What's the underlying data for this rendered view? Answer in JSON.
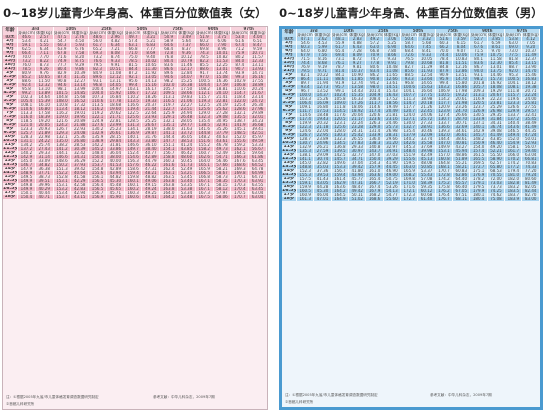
{
  "titles": {
    "female": "0~18岁儿童青少年身高、体重百分位数值表（女）",
    "male": "0~18岁儿童青少年身高、体重百分位数值表（男）"
  },
  "table_header": {
    "age_label": "年龄",
    "percentiles": [
      "3rd",
      "10th",
      "25th",
      "50th",
      "75th",
      "90th",
      "97th"
    ],
    "sub_labels": [
      "身高(cm)",
      "体重(kg)"
    ]
  },
  "ages": [
    "出生",
    "2月",
    "4月",
    "6月",
    "9月",
    "12月",
    "15月",
    "18月",
    "21月",
    "2岁",
    "2.5岁",
    "3岁",
    "3.5岁",
    "4岁",
    "4.5岁",
    "5岁",
    "5.5岁",
    "6岁",
    "6.5岁",
    "7岁",
    "7.5岁",
    "8岁",
    "8.5岁",
    "9岁",
    "9.5岁",
    "10岁",
    "10.5岁",
    "11岁",
    "11.5岁",
    "12岁",
    "12.5岁",
    "13岁",
    "13.5岁",
    "14岁",
    "14.5岁",
    "15岁",
    "15.5岁",
    "16岁",
    "16.5岁",
    "17岁",
    "18岁"
  ],
  "female_rows": [
    [
      "46.6",
      "2.57",
      "47.5",
      "2.76",
      "48.6",
      "2.96",
      "49.7",
      "3.21",
      "50.9",
      "3.49",
      "51.9",
      "3.75",
      "53.0",
      "4.04"
    ],
    [
      "53.4",
      "4.21",
      "54.7",
      "4.50",
      "56.0",
      "4.82",
      "57.4",
      "5.21",
      "58.9",
      "5.64",
      "60.2",
      "6.06",
      "61.6",
      "6.51"
    ],
    [
      "59.1",
      "5.55",
      "60.3",
      "5.93",
      "61.7",
      "6.34",
      "63.1",
      "6.83",
      "64.6",
      "7.37",
      "66.0",
      "7.90",
      "67.4",
      "8.47"
    ],
    [
      "62.5",
      "6.34",
      "63.9",
      "6.76",
      "65.2",
      "7.21",
      "66.8",
      "7.77",
      "68.4",
      "8.37",
      "69.8",
      "8.96",
      "71.2",
      "9.59"
    ],
    [
      "66.4",
      "7.11",
      "67.8",
      "7.58",
      "69.3",
      "8.08",
      "71.0",
      "8.69",
      "72.8",
      "9.36",
      "74.3",
      "10.01",
      "75.9",
      "10.71"
    ],
    [
      "70.0",
      "7.70",
      "71.6",
      "8.20",
      "73.2",
      "8.74",
      "75.0",
      "9.40",
      "76.8",
      "10.12",
      "78.5",
      "10.82",
      "80.2",
      "11.57"
    ],
    [
      "73.2",
      "8.22",
      "74.9",
      "8.75",
      "76.6",
      "9.33",
      "78.5",
      "10.02",
      "80.4",
      "10.79",
      "82.2",
      "11.53",
      "84.0",
      "12.33"
    ],
    [
      "76.0",
      "8.73",
      "77.7",
      "9.29",
      "79.5",
      "9.91",
      "81.5",
      "10.65",
      "83.6",
      "11.46",
      "85.5",
      "12.25",
      "87.4",
      "13.11"
    ],
    [
      "78.5",
      "9.26",
      "80.4",
      "9.86",
      "82.3",
      "10.51",
      "84.4",
      "11.30",
      "86.6",
      "12.17",
      "88.6",
      "13.01",
      "90.7",
      "13.93"
    ],
    [
      "80.9",
      "9.76",
      "82.9",
      "10.39",
      "84.9",
      "11.08",
      "87.2",
      "11.92",
      "89.6",
      "12.84",
      "91.7",
      "13.74",
      "93.9",
      "14.71"
    ],
    [
      "85.2",
      "10.65",
      "87.4",
      "11.35",
      "89.6",
      "12.12",
      "92.1",
      "13.05",
      "94.6",
      "14.07",
      "97.0",
      "15.08",
      "99.3",
      "16.16"
    ],
    [
      "88.6",
      "11.50",
      "90.8",
      "12.27",
      "93.1",
      "13.11",
      "95.6",
      "14.13",
      "98.2",
      "15.25",
      "100.5",
      "16.36",
      "102.9",
      "17.55"
    ],
    [
      "92.4",
      "12.32",
      "94.6",
      "13.14",
      "96.8",
      "14.05",
      "99.4",
      "15.16",
      "102.0",
      "16.38",
      "104.4",
      "17.59",
      "106.8",
      "18.89"
    ],
    [
      "95.8",
      "13.10",
      "98.1",
      "13.99",
      "100.4",
      "14.97",
      "103.1",
      "16.17",
      "105.7",
      "17.50",
      "108.2",
      "18.81",
      "110.6",
      "20.24"
    ],
    [
      "99.2",
      "13.89",
      "101.5",
      "14.85",
      "104.0",
      "15.92",
      "106.7",
      "17.22",
      "109.5",
      "18.66",
      "112.1",
      "20.10",
      "114.7",
      "21.67"
    ],
    [
      "102.3",
      "14.64",
      "104.8",
      "15.68",
      "107.3",
      "16.84",
      "110.2",
      "18.26",
      "113.1",
      "19.83",
      "115.7",
      "21.41",
      "118.4",
      "23.14"
    ],
    [
      "105.4",
      "15.39",
      "108.0",
      "16.52",
      "110.6",
      "17.78",
      "113.5",
      "19.33",
      "116.5",
      "21.06",
      "119.3",
      "22.81",
      "122.0",
      "24.72"
    ],
    [
      "108.1",
      "16.10",
      "110.8",
      "17.32",
      "113.5",
      "18.68",
      "116.6",
      "20.37",
      "119.7",
      "22.27",
      "122.5",
      "24.19",
      "125.4",
      "26.30"
    ],
    [
      "110.6",
      "16.80",
      "113.4",
      "18.12",
      "116.2",
      "19.60",
      "119.4",
      "21.44",
      "122.7",
      "23.51",
      "125.6",
      "25.62",
      "128.6",
      "27.96"
    ],
    [
      "113.3",
      "17.58",
      "116.2",
      "19.01",
      "119.2",
      "20.62",
      "122.5",
      "22.64",
      "125.9",
      "24.94",
      "129.0",
      "27.28",
      "132.1",
      "29.89"
    ],
    [
      "116.0",
      "18.39",
      "119.0",
      "19.95",
      "122.1",
      "21.71",
      "125.6",
      "23.93",
      "129.1",
      "26.48",
      "132.3",
      "29.08",
      "135.5",
      "32.01"
    ],
    [
      "118.5",
      "19.20",
      "121.6",
      "20.89",
      "124.9",
      "22.81",
      "128.5",
      "25.25",
      "132.1",
      "28.05",
      "135.4",
      "30.95",
      "138.7",
      "34.23"
    ],
    [
      "121.0",
      "20.05",
      "124.2",
      "21.88",
      "127.6",
      "23.99",
      "131.3",
      "26.67",
      "135.1",
      "29.77",
      "138.5",
      "32.91",
      "141.9",
      "36.68"
    ],
    [
      "123.3",
      "20.93",
      "126.7",
      "22.93",
      "130.2",
      "25.23",
      "134.1",
      "28.19",
      "138.0",
      "31.63",
      "141.6",
      "35.26",
      "145.1",
      "39.41"
    ],
    [
      "125.7",
      "21.89",
      "129.3",
      "24.08",
      "132.9",
      "26.61",
      "136.9",
      "29.87",
      "141.1",
      "33.72",
      "144.8",
      "37.79",
      "148.5",
      "42.51"
    ],
    [
      "128.3",
      "22.98",
      "132.1",
      "25.36",
      "135.9",
      "28.15",
      "140.1",
      "31.76",
      "144.4",
      "36.05",
      "148.2",
      "40.63",
      "152.0",
      "45.97"
    ],
    [
      "131.1",
      "24.22",
      "135.0",
      "26.80",
      "138.9",
      "29.84",
      "143.3",
      "33.80",
      "147.7",
      "38.53",
      "151.6",
      "43.61",
      "155.6",
      "49.59"
    ],
    [
      "134.2",
      "25.74",
      "138.2",
      "28.53",
      "142.2",
      "31.81",
      "146.6",
      "36.10",
      "151.1",
      "41.24",
      "155.2",
      "46.78",
      "159.2",
      "53.33"
    ],
    [
      "137.2",
      "27.43",
      "141.2",
      "30.39",
      "145.2",
      "33.86",
      "149.7",
      "38.40",
      "154.1",
      "43.85",
      "158.2",
      "49.73",
      "162.1",
      "56.67"
    ],
    [
      "140.2",
      "29.33",
      "144.1",
      "32.42",
      "148.0",
      "36.04",
      "152.4",
      "40.77",
      "156.7",
      "46.42",
      "160.7",
      "52.49",
      "164.5",
      "59.64"
    ],
    [
      "142.9",
      "31.14",
      "146.6",
      "34.31",
      "150.4",
      "38.00",
      "154.6",
      "42.89",
      "158.8",
      "48.60",
      "162.6",
      "54.71",
      "166.3",
      "61.86"
    ],
    [
      "145.0",
      "33.09",
      "148.6",
      "36.29",
      "152.2",
      "40.00",
      "156.3",
      "44.79",
      "160.3",
      "50.45",
      "164.0",
      "56.46",
      "167.6",
      "63.45"
    ],
    [
      "146.7",
      "34.82",
      "150.2",
      "37.93",
      "153.7",
      "41.53",
      "157.6",
      "46.22",
      "161.6",
      "51.73",
      "165.1",
      "57.66",
      "168.6",
      "64.52"
    ],
    [
      "147.9",
      "36.38",
      "151.3",
      "39.42",
      "154.8",
      "42.89",
      "158.6",
      "47.31",
      "162.4",
      "52.49",
      "165.9",
      "58.21",
      "169.3",
      "64.78"
    ],
    [
      "148.9",
      "37.71",
      "152.2",
      "40.64",
      "155.6",
      "43.94",
      "159.4",
      "48.21",
      "163.1",
      "53.21",
      "166.5",
      "58.67",
      "169.8",
      "64.99"
    ],
    [
      "149.5",
      "38.73",
      "152.8",
      "41.58",
      "156.1",
      "44.82",
      "159.8",
      "48.82",
      "163.5",
      "53.45",
      "166.8",
      "58.73",
      "170.1",
      "64.72"
    ],
    [
      "149.9",
      "39.51",
      "153.1",
      "42.29",
      "156.5",
      "45.30",
      "160.1",
      "49.06",
      "163.8",
      "53.40",
      "167.1",
      "58.35",
      "170.3",
      "63.91"
    ],
    [
      "149.8",
      "39.96",
      "153.1",
      "42.58",
      "156.4",
      "45.48",
      "160.1",
      "49.15",
      "163.8",
      "53.35",
      "167.1",
      "58.15",
      "170.3",
      "63.55"
    ],
    [
      "149.9",
      "40.29",
      "153.2",
      "42.83",
      "156.5",
      "45.65",
      "160.2",
      "49.24",
      "163.8",
      "53.38",
      "167.1",
      "58.12",
      "170.4",
      "63.45"
    ],
    [
      "150.1",
      "40.44",
      "153.4",
      "42.94",
      "156.7",
      "45.71",
      "160.3",
      "49.25",
      "164.0",
      "53.34",
      "167.3",
      "57.97",
      "170.5",
      "63.04"
    ],
    [
      "150.4",
      "40.71",
      "153.7",
      "43.15",
      "156.9",
      "45.90",
      "160.6",
      "49.41",
      "164.2",
      "53.48",
      "167.5",
      "58.06",
      "170.7",
      "63.04"
    ]
  ],
  "male_rows": [
    [
      "47.1",
      "2.62",
      "48.1",
      "2.83",
      "49.2",
      "3.06",
      "50.4",
      "3.32",
      "51.6",
      "3.59",
      "52.7",
      "3.85",
      "53.8",
      "4.12"
    ],
    [
      "54.6",
      "4.53",
      "55.9",
      "4.88",
      "57.2",
      "5.25",
      "58.7",
      "5.68",
      "60.3",
      "6.15",
      "61.7",
      "6.59",
      "63.0",
      "7.05"
    ],
    [
      "60.3",
      "5.99",
      "61.7",
      "6.43",
      "63.0",
      "6.90",
      "64.6",
      "7.45",
      "66.2",
      "8.04",
      "67.6",
      "8.61",
      "69.0",
      "9.20"
    ],
    [
      "64.0",
      "6.80",
      "65.4",
      "7.28",
      "66.8",
      "7.80",
      "68.4",
      "8.41",
      "70.0",
      "9.07",
      "71.5",
      "9.70",
      "73.0",
      "10.37"
    ],
    [
      "67.9",
      "7.56",
      "69.4",
      "8.09",
      "70.9",
      "8.66",
      "72.6",
      "9.33",
      "74.4",
      "10.06",
      "75.9",
      "10.75",
      "77.5",
      "11.49"
    ],
    [
      "71.5",
      "8.16",
      "73.1",
      "8.72",
      "74.7",
      "9.33",
      "76.5",
      "10.05",
      "78.4",
      "10.83",
      "80.1",
      "11.58",
      "81.8",
      "12.37"
    ],
    [
      "74.4",
      "8.68",
      "76.1",
      "9.27",
      "77.8",
      "9.91",
      "79.8",
      "10.68",
      "81.8",
      "11.51",
      "83.6",
      "12.30",
      "85.4",
      "13.15"
    ],
    [
      "76.9",
      "9.19",
      "78.7",
      "9.81",
      "80.6",
      "10.48",
      "82.7",
      "11.29",
      "84.8",
      "12.16",
      "86.7",
      "13.01",
      "88.7",
      "13.90"
    ],
    [
      "79.5",
      "9.71",
      "81.4",
      "10.37",
      "83.4",
      "11.08",
      "85.6",
      "11.93",
      "87.9",
      "12.86",
      "90.0",
      "13.75",
      "92.0",
      "14.70"
    ],
    [
      "82.1",
      "10.22",
      "84.1",
      "10.90",
      "86.2",
      "11.65",
      "88.5",
      "12.54",
      "90.9",
      "13.51",
      "93.1",
      "14.46",
      "95.3",
      "15.46"
    ],
    [
      "86.4",
      "11.11",
      "88.6",
      "11.85",
      "90.8",
      "12.66",
      "93.3",
      "13.64",
      "95.9",
      "14.70",
      "98.2",
      "15.73",
      "100.5",
      "16.83"
    ],
    [
      "89.7",
      "11.94",
      "91.9",
      "12.74",
      "94.2",
      "13.61",
      "96.8",
      "14.65",
      "99.4",
      "15.80",
      "101.8",
      "16.92",
      "104.1",
      "18.12"
    ],
    [
      "93.4",
      "12.73",
      "95.7",
      "13.58",
      "98.0",
      "14.51",
      "100.6",
      "15.63",
      "103.2",
      "16.86",
      "105.7",
      "18.08",
      "108.1",
      "19.38"
    ],
    [
      "96.7",
      "13.52",
      "99.1",
      "14.43",
      "101.4",
      "15.43",
      "104.1",
      "16.64",
      "106.9",
      "17.98",
      "109.3",
      "19.29",
      "111.8",
      "20.71"
    ],
    [
      "100.0",
      "14.37",
      "102.4",
      "15.35",
      "104.9",
      "16.43",
      "107.7",
      "17.75",
      "110.5",
      "19.22",
      "113.1",
      "20.67",
      "115.7",
      "22.24"
    ],
    [
      "103.3",
      "15.26",
      "105.8",
      "16.33",
      "108.4",
      "17.52",
      "111.3",
      "18.98",
      "114.2",
      "20.61",
      "116.9",
      "22.23",
      "119.6",
      "24.00"
    ],
    [
      "106.4",
      "16.09",
      "109.0",
      "17.26",
      "111.7",
      "18.56",
      "114.7",
      "20.18",
      "117.7",
      "21.98",
      "120.5",
      "23.81",
      "123.3",
      "25.81"
    ],
    [
      "109.1",
      "16.80",
      "111.8",
      "18.06",
      "114.6",
      "19.49",
      "117.7",
      "21.26",
      "120.9",
      "23.26",
      "123.7",
      "25.29",
      "126.6",
      "27.55"
    ],
    [
      "111.7",
      "17.53",
      "114.5",
      "18.92",
      "117.4",
      "20.49",
      "120.7",
      "22.45",
      "123.9",
      "24.70",
      "126.9",
      "26.98",
      "129.9",
      "29.57"
    ],
    [
      "114.6",
      "18.48",
      "117.6",
      "20.04",
      "120.6",
      "21.81",
      "124.0",
      "24.06",
      "127.4",
      "26.66",
      "130.5",
      "29.35",
      "133.7",
      "32.41"
    ],
    [
      "117.4",
      "19.43",
      "120.5",
      "21.17",
      "123.6",
      "23.16",
      "127.1",
      "25.72",
      "130.7",
      "28.70",
      "133.9",
      "31.84",
      "137.2",
      "35.45"
    ],
    [
      "119.9",
      "20.32",
      "123.1",
      "22.24",
      "126.3",
      "24.46",
      "130.0",
      "27.33",
      "133.7",
      "30.71",
      "137.1",
      "34.31",
      "140.4",
      "38.49"
    ],
    [
      "122.3",
      "21.18",
      "125.6",
      "23.28",
      "129.0",
      "25.73",
      "132.7",
      "28.91",
      "136.6",
      "32.69",
      "140.1",
      "36.74",
      "143.6",
      "41.49"
    ],
    [
      "124.6",
      "22.04",
      "128.0",
      "24.31",
      "131.4",
      "26.98",
      "135.4",
      "30.46",
      "139.3",
      "34.61",
      "142.9",
      "39.08",
      "146.5",
      "44.35"
    ],
    [
      "126.7",
      "22.95",
      "130.3",
      "25.42",
      "133.9",
      "28.31",
      "137.9",
      "32.09",
      "142.0",
      "36.61",
      "145.7",
      "41.49",
      "149.4",
      "47.24"
    ],
    [
      "128.7",
      "23.89",
      "132.3",
      "26.55",
      "136.0",
      "29.66",
      "140.2",
      "33.74",
      "144.4",
      "38.61",
      "148.2",
      "43.85",
      "152.0",
      "50.01"
    ],
    [
      "130.7",
      "24.96",
      "134.5",
      "27.83",
      "138.3",
      "31.20",
      "142.6",
      "35.58",
      "147.0",
      "40.81",
      "150.9",
      "46.40",
      "154.9",
      "52.93"
    ],
    [
      "132.9",
      "26.21",
      "136.8",
      "29.33",
      "140.8",
      "32.97",
      "145.3",
      "37.69",
      "149.9",
      "43.27",
      "154.0",
      "49.20",
      "158.1",
      "56.07"
    ],
    [
      "135.3",
      "27.59",
      "139.5",
      "30.97",
      "143.7",
      "34.91",
      "148.4",
      "39.98",
      "153.1",
      "45.94",
      "157.4",
      "52.21",
      "161.7",
      "59.40"
    ],
    [
      "138.1",
      "29.09",
      "142.5",
      "32.77",
      "147.0",
      "37.03",
      "151.9",
      "42.49",
      "157.0",
      "48.86",
      "161.5",
      "55.50",
      "166.0",
      "63.04"
    ],
    [
      "141.1",
      "30.74",
      "145.7",
      "34.71",
      "150.4",
      "39.29",
      "155.6",
      "45.13",
      "160.8",
      "51.89",
      "165.5",
      "58.90",
      "170.2",
      "66.81"
    ],
    [
      "145.0",
      "32.82",
      "149.6",
      "37.04",
      "154.3",
      "41.90",
      "159.5",
      "48.08",
      "164.8",
      "55.21",
      "169.5",
      "62.57",
      "174.2",
      "70.83"
    ],
    [
      "148.8",
      "35.03",
      "153.3",
      "39.42",
      "157.9",
      "44.45",
      "163.0",
      "50.85",
      "168.1",
      "58.21",
      "172.7",
      "65.80",
      "177.2",
      "74.33"
    ],
    [
      "152.3",
      "37.36",
      "156.7",
      "41.80",
      "161.0",
      "46.90",
      "165.9",
      "53.37",
      "170.7",
      "60.83",
      "175.1",
      "68.53",
      "179.4",
      "77.20"
    ],
    [
      "155.3",
      "39.53",
      "159.4",
      "43.94",
      "163.6",
      "49.00",
      "168.2",
      "55.43",
      "172.8",
      "62.86",
      "176.9",
      "70.55",
      "181.0",
      "79.24"
    ],
    [
      "157.5",
      "41.43",
      "161.4",
      "45.77",
      "165.4",
      "50.75",
      "169.8",
      "57.08",
      "174.2",
      "64.40",
      "178.2",
      "72.00",
      "182.0",
      "80.60"
    ],
    [
      "159.1",
      "43.05",
      "162.9",
      "47.31",
      "166.7",
      "52.19",
      "171.0",
      "58.39",
      "175.2",
      "65.57",
      "179.1",
      "73.03",
      "182.8",
      "81.49"
    ],
    [
      "159.9",
      "44.28",
      "163.6",
      "48.47",
      "167.4",
      "53.26",
      "171.6",
      "59.35",
      "175.8",
      "66.40",
      "179.5",
      "73.73",
      "183.2",
      "82.05"
    ],
    [
      "160.5",
      "45.30",
      "164.2",
      "49.42",
      "167.9",
      "54.13",
      "172.1",
      "60.12",
      "176.2",
      "67.05",
      "179.9",
      "74.25",
      "183.5",
      "82.44"
    ],
    [
      "160.9",
      "46.04",
      "164.5",
      "50.11",
      "168.2",
      "54.77",
      "172.3",
      "60.68",
      "176.4",
      "67.51",
      "180.1",
      "74.62",
      "183.7",
      "82.70"
    ],
    [
      "161.3",
      "47.01",
      "164.9",
      "51.02",
      "168.6",
      "55.60",
      "172.7",
      "61.40",
      "176.7",
      "68.11",
      "180.4",
      "75.08",
      "183.9",
      "83.00"
    ]
  ],
  "notes": {
    "female": [
      "注：①根据2005年九省/市儿童体格发育调查数据研究制定",
      "参考文献：中华儿科杂志，2009年7期",
      "②首都儿科研究所"
    ],
    "male": [
      "注：①根据2005年九省/市儿童体格发育调查数据研究制定",
      "参考文献：中华儿科杂志，2009年7期",
      "②首都儿科研究所"
    ]
  },
  "colors": {
    "female_dark": "#f4bccb",
    "female_light": "#fbe2e9",
    "male_dark": "#a9d3ee",
    "male_light": "#d8ecf8",
    "male_border": "#4a9ad0"
  }
}
